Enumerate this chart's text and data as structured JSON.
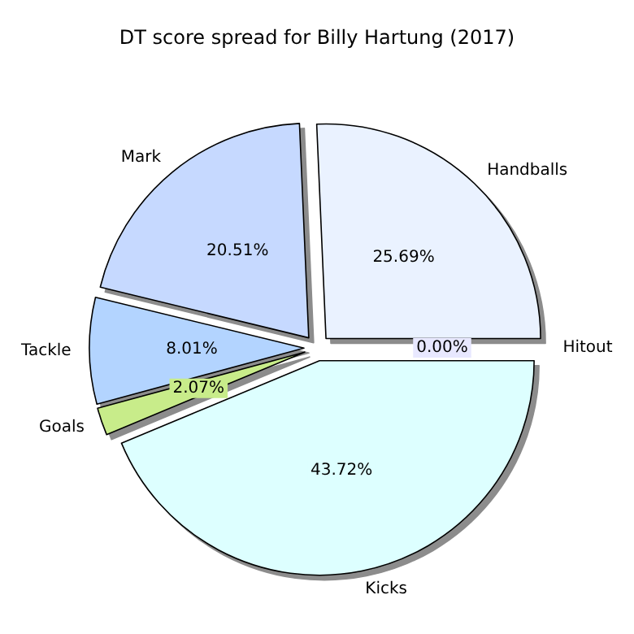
{
  "chart_data": {
    "type": "pie",
    "title": "DT score spread for Billy Hartung (2017)",
    "categories": [
      "Handballs",
      "Mark",
      "Tackle",
      "Goals",
      "Kicks",
      "Hitout"
    ],
    "values": [
      25.69,
      20.51,
      8.01,
      2.07,
      43.72,
      0.0
    ],
    "value_labels": [
      "25.69%",
      "20.51%",
      "8.01%",
      "2.07%",
      "43.72%",
      "0.00%"
    ],
    "colors": [
      "#eaf2ff",
      "#c6d9ff",
      "#b3d4ff",
      "#c8ec8a",
      "#ddffff",
      "#e8e8ff"
    ],
    "legend": false
  }
}
